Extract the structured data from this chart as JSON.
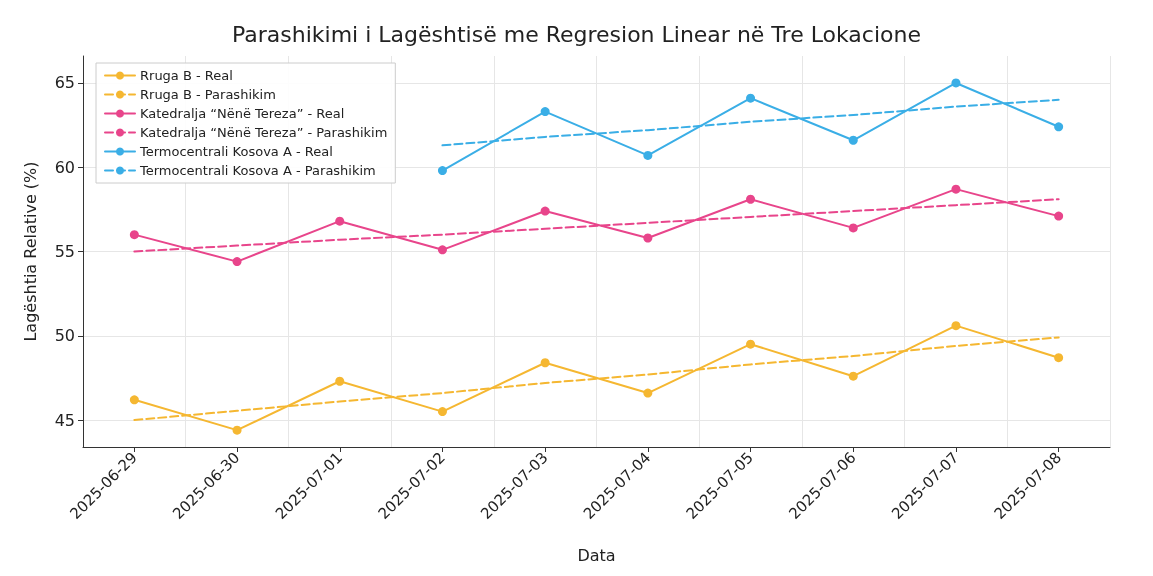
{
  "chart_data": {
    "type": "line",
    "title": "Parashikimi i Lagështisë me Regresion Linear në Tre Lokacione",
    "xlabel": "Data",
    "ylabel": "Lagështia Relative (%)",
    "categories": [
      "2025-06-29",
      "2025-06-30",
      "2025-07-01",
      "2025-07-02",
      "2025-07-03",
      "2025-07-04",
      "2025-07-05",
      "2025-07-06",
      "2025-07-07",
      "2025-07-08"
    ],
    "series": [
      {
        "name": "Rruga B - Real",
        "color": "#f5b731",
        "marker": "circle",
        "line_style": "solid",
        "values": [
          46.2,
          44.4,
          47.3,
          45.5,
          48.4,
          46.6,
          49.5,
          47.6,
          50.6,
          48.7
        ]
      },
      {
        "name": "Rruga B - Parashikim",
        "color": "#f5b731",
        "marker": "none",
        "line_style": "dashed",
        "values": [
          45.0,
          45.55,
          46.1,
          46.6,
          47.2,
          47.7,
          48.3,
          48.8,
          49.4,
          49.9
        ]
      },
      {
        "name": "Katedralja “Nënë Tereza” - Real",
        "color": "#e8458b",
        "marker": "circle",
        "line_style": "solid",
        "values": [
          56.0,
          54.4,
          56.8,
          55.1,
          57.4,
          55.8,
          58.1,
          56.4,
          58.7,
          57.1
        ]
      },
      {
        "name": "Katedralja “Nënë Tereza” - Parashikim",
        "color": "#e8458b",
        "marker": "none",
        "line_style": "dashed",
        "values": [
          55.0,
          55.35,
          55.7,
          56.0,
          56.35,
          56.7,
          57.05,
          57.4,
          57.75,
          58.1
        ]
      },
      {
        "name": "Termocentrali Kosova A - Real",
        "color": "#3aaee6",
        "marker": "circle",
        "line_style": "solid",
        "values": [
          null,
          null,
          null,
          59.8,
          63.3,
          60.7,
          64.1,
          61.6,
          65.0,
          62.4
        ]
      },
      {
        "name": "Termocentrali Kosova A - Parashikim",
        "color": "#3aaee6",
        "marker": "none",
        "line_style": "dashed",
        "values": [
          null,
          null,
          null,
          61.3,
          61.8,
          62.2,
          62.7,
          63.1,
          63.6,
          64.0
        ]
      }
    ],
    "ylim": [
      43.4,
      66.6
    ],
    "yticks": [
      45,
      50,
      55,
      60,
      65
    ],
    "grid": true,
    "legend": "top left"
  }
}
